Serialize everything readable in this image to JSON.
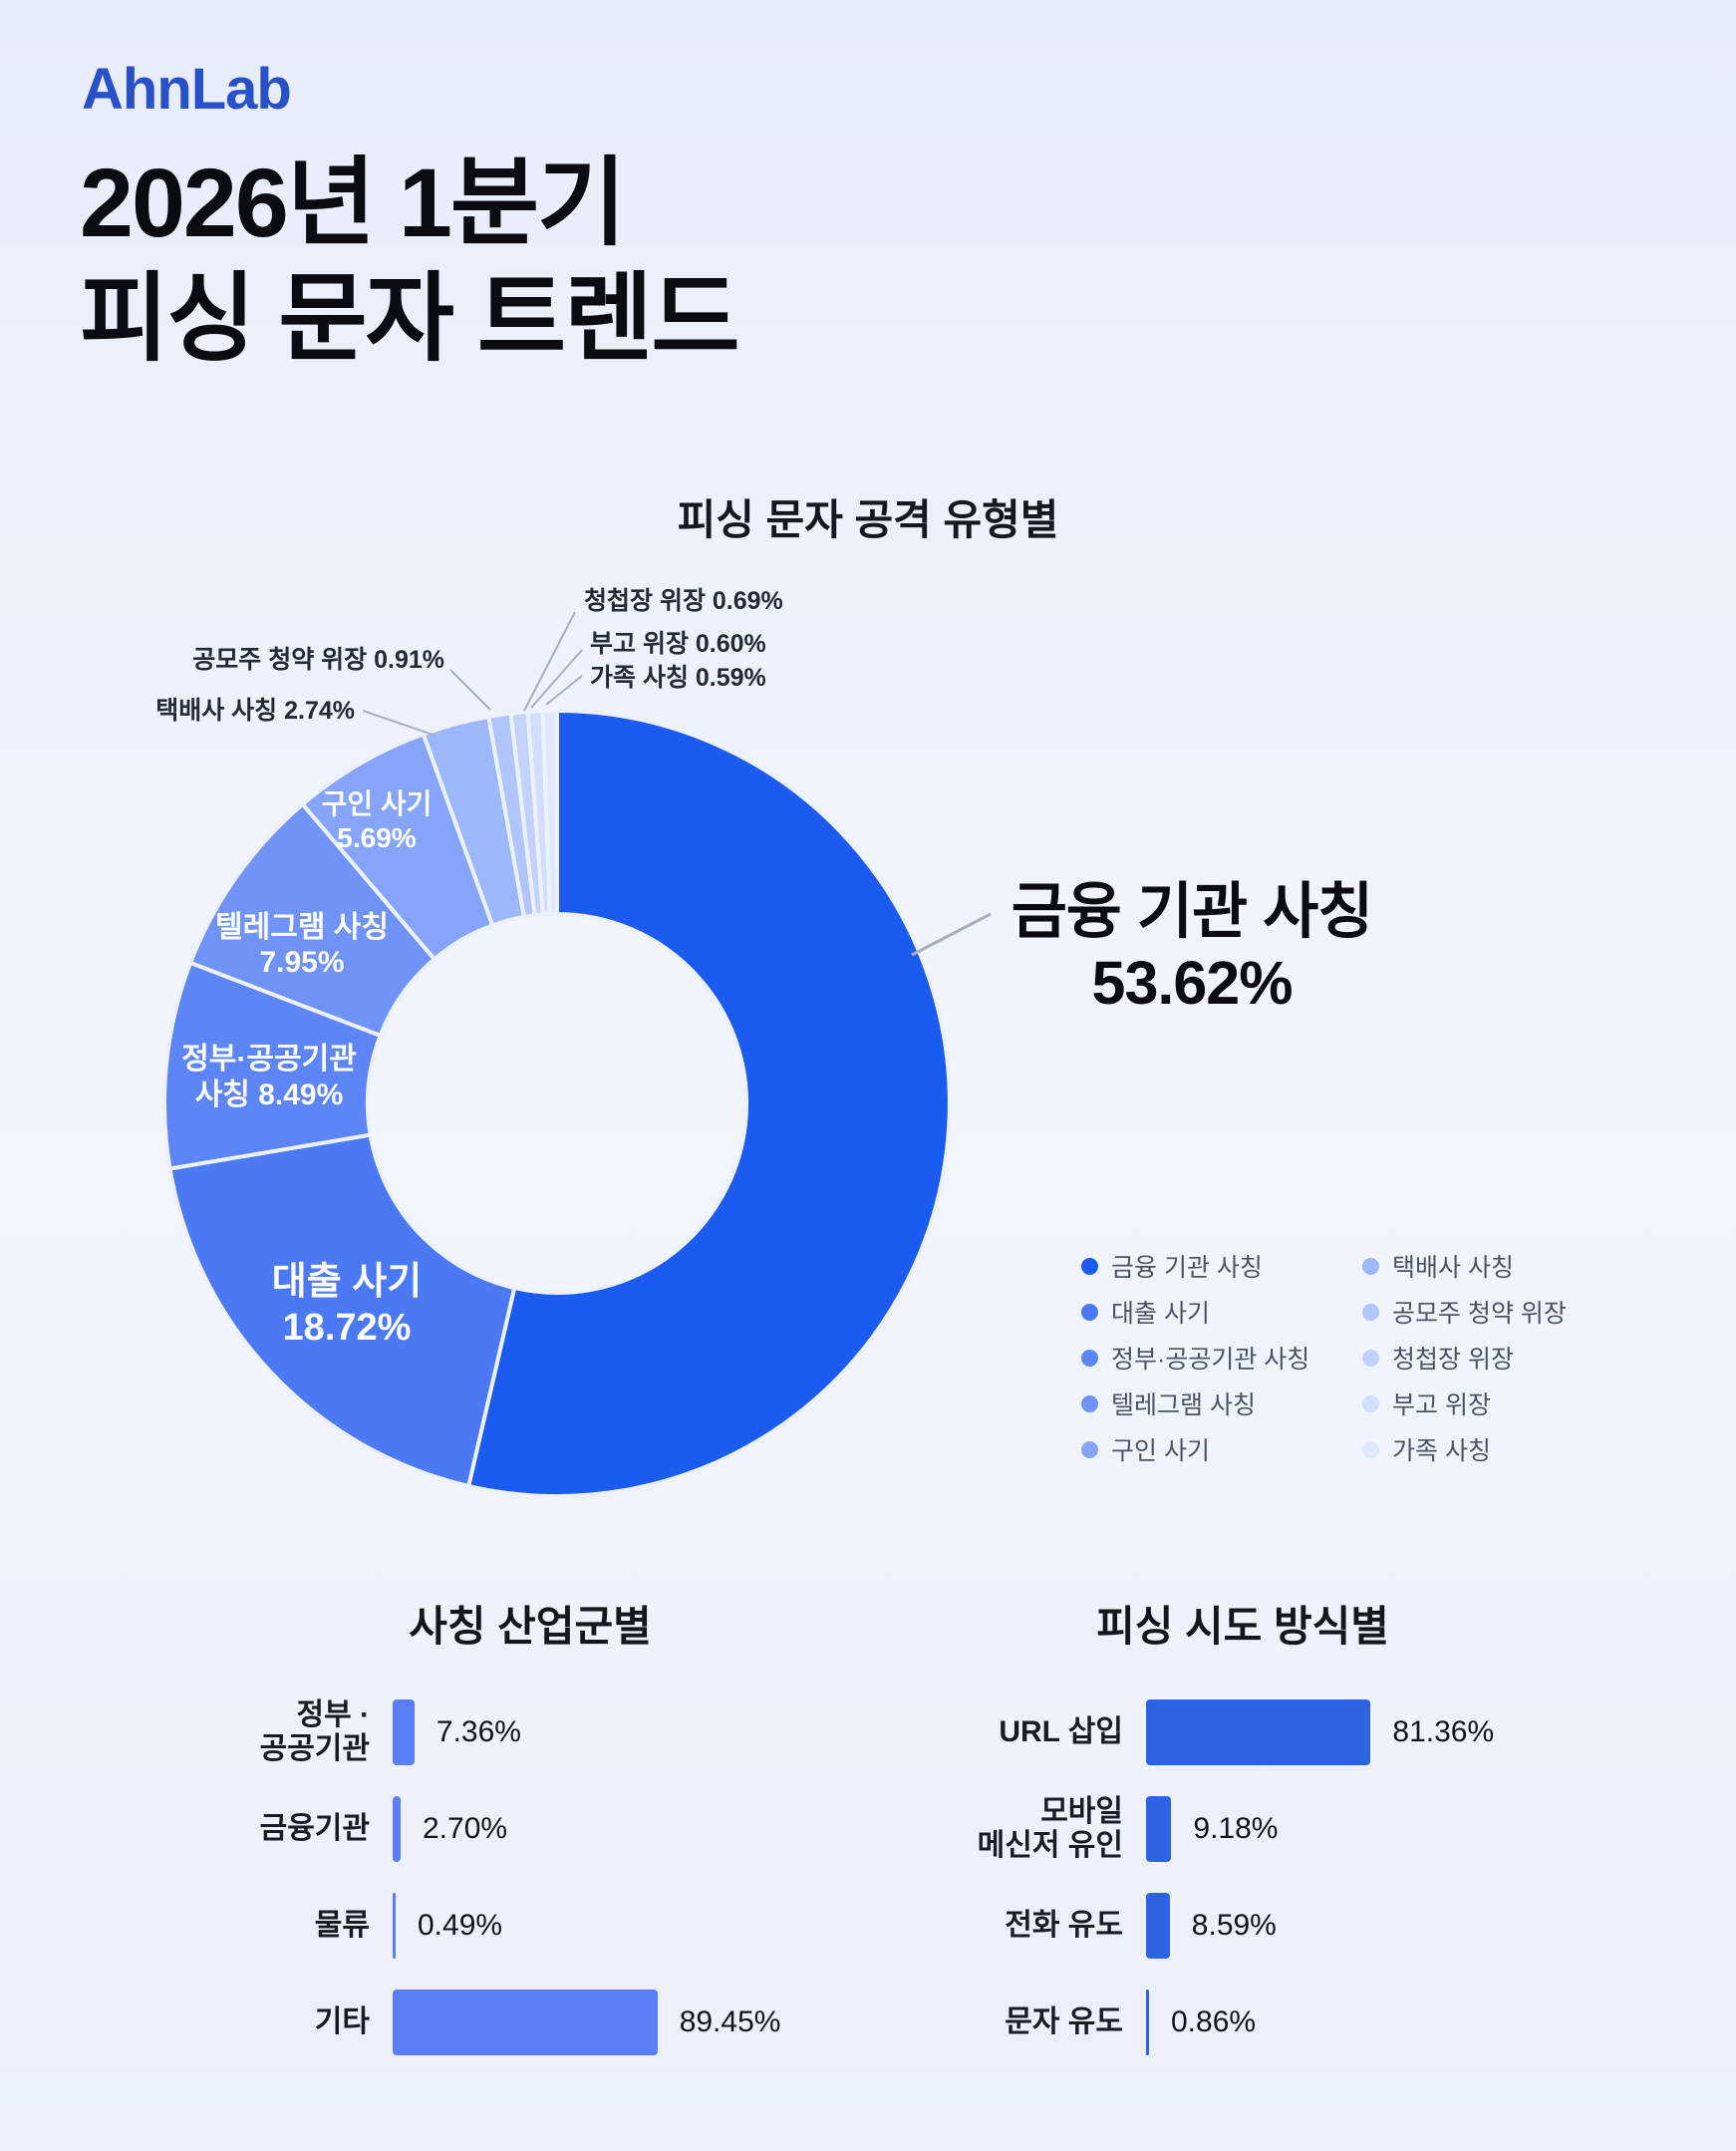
{
  "brand": {
    "logo": "AhnLab"
  },
  "title": {
    "line1": "2026년 1분기",
    "line2": "피싱 문자 트렌드"
  },
  "colors": {
    "brand_blue": "#2750c9",
    "title_text": "#0a0c11",
    "background_top": "#e7ecf9",
    "background_bottom": "#eaeffa",
    "leader_line": "#a6afbe",
    "inside_label": "#ffffff",
    "outside_label": "#232a36",
    "legend_text": "#4a5263"
  },
  "chart_data": [
    {
      "type": "pie",
      "subtype": "donut",
      "title": "피싱 문자 공격 유형별",
      "unit": "%",
      "start": "12-oclock-clockwise",
      "slices": [
        {
          "label": "금융 기관 사칭",
          "value": 53.62,
          "pct": "53.62%",
          "color": "#1b5bef",
          "display_lines": [
            "금융 기관 사칭",
            "53.62%"
          ]
        },
        {
          "label": "대출 사기",
          "value": 18.72,
          "pct": "18.72%",
          "color": "#4b79f3",
          "display_lines": [
            "대출 사기",
            "18.72%"
          ]
        },
        {
          "label": "정부·공공기관 사칭",
          "value": 8.49,
          "pct": "8.49%",
          "color": "#5e85f5",
          "display_lines": [
            "정부·공공기관",
            "사칭 8.49%"
          ]
        },
        {
          "label": "텔레그램 사칭",
          "value": 7.95,
          "pct": "7.95%",
          "color": "#6f93f7",
          "display_lines": [
            "텔레그램 사칭",
            "7.95%"
          ]
        },
        {
          "label": "구인 사기",
          "value": 5.69,
          "pct": "5.69%",
          "color": "#86a5f8",
          "display_lines": [
            "구인 사기",
            "5.69%"
          ]
        },
        {
          "label": "택배사 사칭",
          "value": 2.74,
          "pct": "2.74%",
          "color": "#9cb7fa",
          "display_lines": [
            "택배사 사칭 2.74%"
          ]
        },
        {
          "label": "공모주 청약 위장",
          "value": 0.91,
          "pct": "0.91%",
          "color": "#afc5fb",
          "display_lines": [
            "공모주 청약 위장 0.91%"
          ]
        },
        {
          "label": "청첩장 위장",
          "value": 0.69,
          "pct": "0.69%",
          "color": "#c2d2fc",
          "display_lines": [
            "청첩장 위장 0.69%"
          ]
        },
        {
          "label": "부고 위장",
          "value": 0.6,
          "pct": "0.60%",
          "color": "#d2defd",
          "display_lines": [
            "부고 위장 0.60%"
          ]
        },
        {
          "label": "가족 사칭",
          "value": 0.59,
          "pct": "0.59%",
          "color": "#e0e8fe",
          "display_lines": [
            "가족 사칭 0.59%"
          ]
        }
      ],
      "legend_columns": [
        [
          0,
          1,
          2,
          3,
          4
        ],
        [
          5,
          6,
          7,
          8,
          9
        ]
      ]
    },
    {
      "type": "bar",
      "orientation": "horizontal",
      "title": "사칭 산업군별",
      "categories": [
        "정부 ·\n공공기관",
        "금융기관",
        "물류",
        "기타"
      ],
      "values": [
        7.36,
        2.7,
        0.49,
        89.45
      ],
      "value_labels": [
        "7.36%",
        "2.70%",
        "0.49%",
        "89.45%"
      ],
      "xlim": [
        0,
        100
      ],
      "bar_color": "#5a7ef4"
    },
    {
      "type": "bar",
      "orientation": "horizontal",
      "title": "피싱 시도 방식별",
      "categories": [
        "URL 삽입",
        "모바일\n메신저 유인",
        "전화 유도",
        "문자 유도"
      ],
      "values": [
        81.36,
        9.18,
        8.59,
        0.86
      ],
      "value_labels": [
        "81.36%",
        "9.18%",
        "8.59%",
        "0.86%"
      ],
      "xlim": [
        0,
        100
      ],
      "bar_color": "#2c63e2"
    }
  ]
}
